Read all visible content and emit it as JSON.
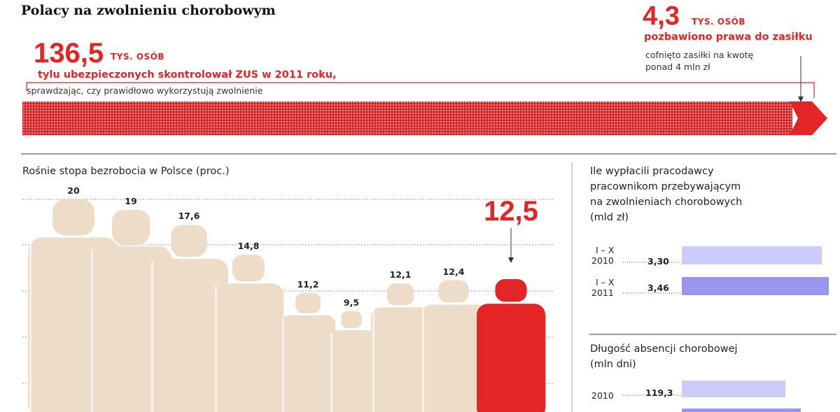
{
  "title": "Polacy na zwolnieniu chorobowym",
  "top_infobox": {
    "controlled_value": "136,5",
    "controlled_unit": "TYS. OSÓB",
    "controlled_lead": "tylu ubezpieczonych skontrolował ZUS w 2011 roku,",
    "controlled_note": "sprawdzając, czy prawidłowo wykorzystują zwolnienie",
    "deprived_value": "4,3",
    "deprived_unit": "TYS. OSÓB",
    "deprived_lead": "pozbawiono prawa do zasiłku",
    "deprived_note_line1": "cofnięto zasiłki na kwotę",
    "deprived_note_line2": "ponad 4 mln zł"
  },
  "colors": {
    "accent_red": "#e32526",
    "figure_beige": "#ecdcc8",
    "grid_gray": "#9a9a9a",
    "bar_light_purple": "#ccccf8",
    "bar_purple": "#9a96ee"
  },
  "chart_data": [
    {
      "type": "bar",
      "title": "Rośnie stopa bezrobocia w Polsce (proc.)",
      "values": [
        20,
        19,
        17.6,
        14.8,
        11.2,
        9.5,
        12.1,
        12.4,
        12.5
      ],
      "labels": [
        "20",
        "19",
        "17,6",
        "14,8",
        "11,2",
        "9,5",
        "12,1",
        "12,4",
        "12,5"
      ],
      "highlight_index": 8,
      "grid": true
    },
    {
      "type": "bar",
      "orientation": "horizontal",
      "title_lines": [
        "Ile wypłacili pracodawcy",
        "pracownikom przebywającym",
        "na zwolnieniach chorobowych",
        "(mld zł)"
      ],
      "categories": [
        [
          "I – X",
          "2010"
        ],
        [
          "I – X",
          "2011"
        ]
      ],
      "values": [
        3.3,
        3.46
      ],
      "labels": [
        "3,30",
        "3,46"
      ]
    },
    {
      "type": "bar",
      "orientation": "horizontal",
      "title_lines": [
        "Długość absencji chorobowej",
        "(mln dni)"
      ],
      "categories": [
        "2010"
      ],
      "values": [
        119.3
      ],
      "labels": [
        "119,3"
      ]
    }
  ]
}
